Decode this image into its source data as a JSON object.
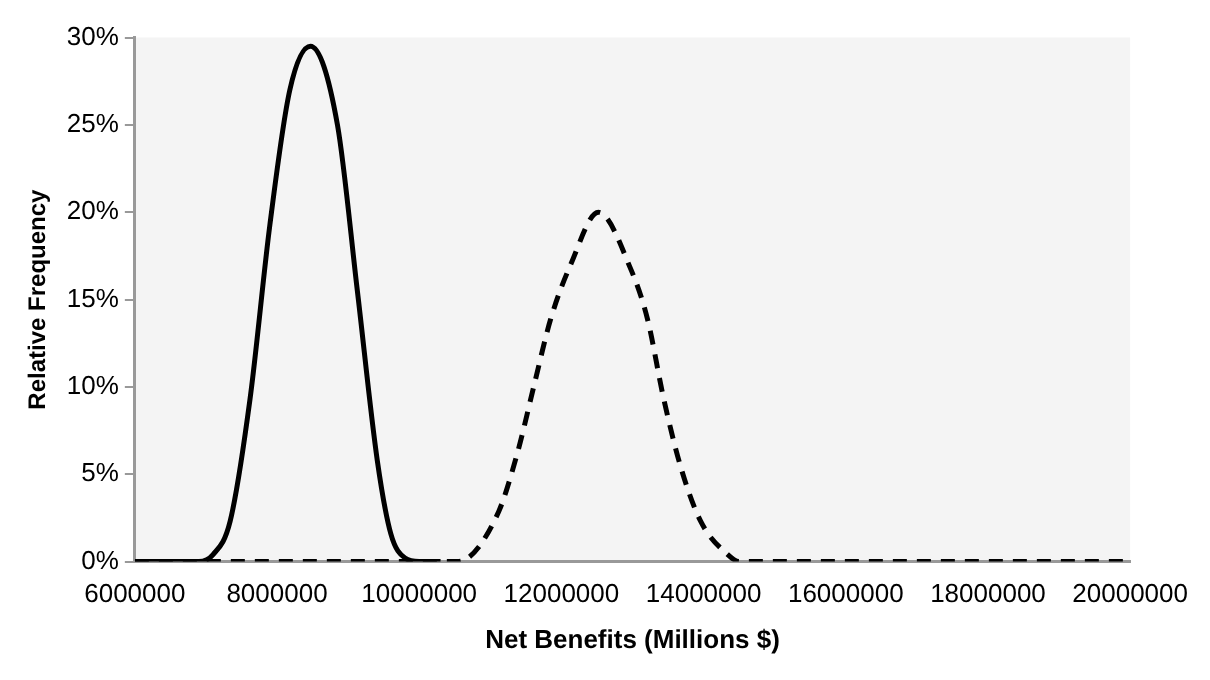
{
  "chart_data": {
    "type": "line",
    "xlabel": "Net Benefits (Millions $)",
    "ylabel": "Relative Frequency",
    "x": [
      6000000,
      6500000,
      6900000,
      7100000,
      7340000,
      7620000,
      7900000,
      8180000,
      8470000,
      8850000,
      9130000,
      9410000,
      9600000,
      9800000,
      10000000,
      10300000
    ],
    "series": [
      {
        "color": "#000000",
        "line_style": "solid",
        "values": [
          0,
          0,
          0,
          0.4,
          2.3,
          9.3,
          19.3,
          27,
          29.5,
          25,
          15.5,
          5.8,
          1.6,
          0.2,
          0,
          0
        ]
      },
      {
        "color": "#000000",
        "line_style": "dashed",
        "x": [
          6000000,
          8000000,
          10000000,
          10540000,
          11100000,
          11380000,
          11610000,
          11850000,
          12130000,
          12520000,
          12970000,
          13210000,
          13440000,
          13680000,
          13960000,
          14340000,
          14500000,
          17000000,
          20000000
        ],
        "values": [
          0,
          0,
          0,
          0,
          2.7,
          6.2,
          10,
          13.9,
          17,
          20,
          16.8,
          13.9,
          9.3,
          5.4,
          2.3,
          0.4,
          0,
          0,
          0
        ]
      }
    ],
    "xlim": [
      6000000,
      20000000
    ],
    "xticks": [
      6000000,
      8000000,
      10000000,
      12000000,
      14000000,
      16000000,
      18000000,
      20000000
    ],
    "ylim": [
      0,
      30
    ],
    "yticks": [
      {
        "value": 0,
        "label": "0%"
      },
      {
        "value": 5,
        "label": "5%"
      },
      {
        "value": 10,
        "label": "10%"
      },
      {
        "value": 15,
        "label": "15%"
      },
      {
        "value": 20,
        "label": "20%"
      },
      {
        "value": 25,
        "label": "25%"
      },
      {
        "value": 30,
        "label": "30%"
      }
    ],
    "grid": false,
    "legend": false,
    "marker": "none"
  }
}
